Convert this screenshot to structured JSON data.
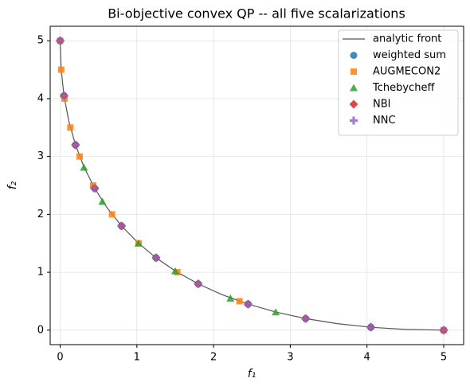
{
  "chart_data": {
    "type": "scatter",
    "title": "Bi-objective convex QP -- all five scalarizations",
    "xlabel": "f₁",
    "ylabel": "f₂",
    "xlim": [
      -0.13,
      5.26
    ],
    "ylim": [
      -0.25,
      5.25
    ],
    "xticks": [
      0,
      1,
      2,
      3,
      4,
      5
    ],
    "yticks": [
      0,
      1,
      2,
      3,
      4,
      5
    ],
    "grid": true,
    "legend": "upper right",
    "series": [
      {
        "name": "analytic front",
        "type": "line",
        "color": "#555555",
        "x": [
          0,
          0.0125,
          0.05,
          0.1125,
          0.2,
          0.3125,
          0.45,
          0.6125,
          0.8,
          1.0125,
          1.25,
          1.5125,
          1.8,
          2.1125,
          2.45,
          2.8125,
          3.2,
          3.6125,
          4.05,
          4.5125,
          5
        ],
        "values": [
          5,
          4.5125,
          4.05,
          3.6125,
          3.2,
          2.8125,
          2.45,
          2.1125,
          1.8,
          1.5125,
          1.25,
          1.0125,
          0.8,
          0.6125,
          0.45,
          0.3125,
          0.2,
          0.1125,
          0.05,
          0.0125,
          0
        ]
      },
      {
        "name": "weighted sum",
        "marker": "circle",
        "color": "#1f77b4",
        "x": [
          0,
          0.05,
          0.2,
          0.45,
          0.8,
          1.25,
          1.8,
          2.45,
          3.2,
          4.05,
          5
        ],
        "values": [
          5,
          4.05,
          3.2,
          2.45,
          1.8,
          1.25,
          0.8,
          0.45,
          0.2,
          0.05,
          0
        ]
      },
      {
        "name": "AUGMECON2",
        "marker": "square",
        "color": "#ff7f0e",
        "x": [
          0,
          0.013,
          0.056,
          0.133,
          0.254,
          0.429,
          0.676,
          1.023,
          1.528,
          2.338,
          5
        ],
        "values": [
          5,
          4.5,
          4,
          3.5,
          3,
          2.5,
          2,
          1.5,
          1,
          0.5,
          0
        ]
      },
      {
        "name": "Tchebycheff",
        "marker": "triangle",
        "color": "#2ca02c",
        "x": [
          0.31,
          0.55,
          1.02,
          1.5,
          2.22,
          2.81
        ],
        "values": [
          2.81,
          2.22,
          1.5,
          1.02,
          0.55,
          0.31
        ]
      },
      {
        "name": "NBI",
        "marker": "diamond",
        "color": "#d62728",
        "x": [
          0,
          0.05,
          0.2,
          0.45,
          0.8,
          1.25,
          1.8,
          2.45,
          3.2,
          4.05,
          5
        ],
        "values": [
          5,
          4.05,
          3.2,
          2.45,
          1.8,
          1.25,
          0.8,
          0.45,
          0.2,
          0.05,
          0
        ]
      },
      {
        "name": "NNC",
        "marker": "plus",
        "color": "#9467bd",
        "x": [
          0,
          0.05,
          0.2,
          0.45,
          0.8,
          1.25,
          1.8,
          2.45,
          3.2,
          4.05,
          5
        ],
        "values": [
          5,
          4.05,
          3.2,
          2.45,
          1.8,
          1.25,
          0.8,
          0.45,
          0.2,
          0.05,
          0
        ]
      }
    ]
  }
}
